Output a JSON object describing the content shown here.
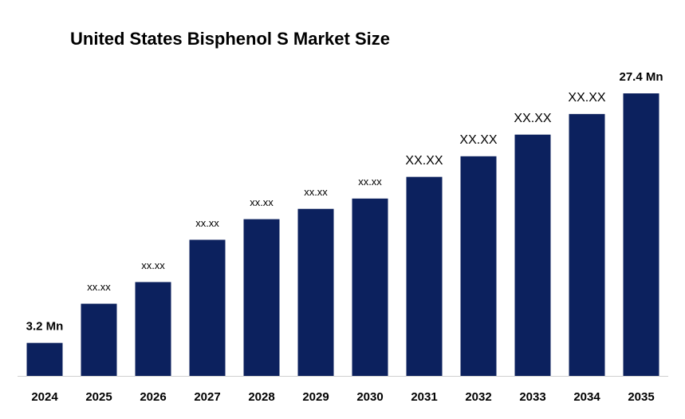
{
  "chart_data": {
    "type": "bar",
    "title": "United States Bisphenol S Market Size",
    "categories": [
      "2024",
      "2025",
      "2026",
      "2027",
      "2028",
      "2029",
      "2030",
      "2031",
      "2032",
      "2033",
      "2034",
      "2035"
    ],
    "values": [
      3.2,
      7.0,
      9.1,
      13.2,
      15.2,
      16.2,
      17.2,
      19.3,
      21.3,
      23.4,
      25.4,
      27.4
    ],
    "value_labels": [
      "3.2 Mn",
      "xx.xx",
      "xx.xx",
      "xx.xx",
      "xx.xx",
      "xx.xx",
      "xx.xx",
      "XX.XX",
      "XX.XX",
      "XX.XX",
      "XX.XX",
      "27.4 Mn"
    ],
    "color": "#0c215e"
  }
}
